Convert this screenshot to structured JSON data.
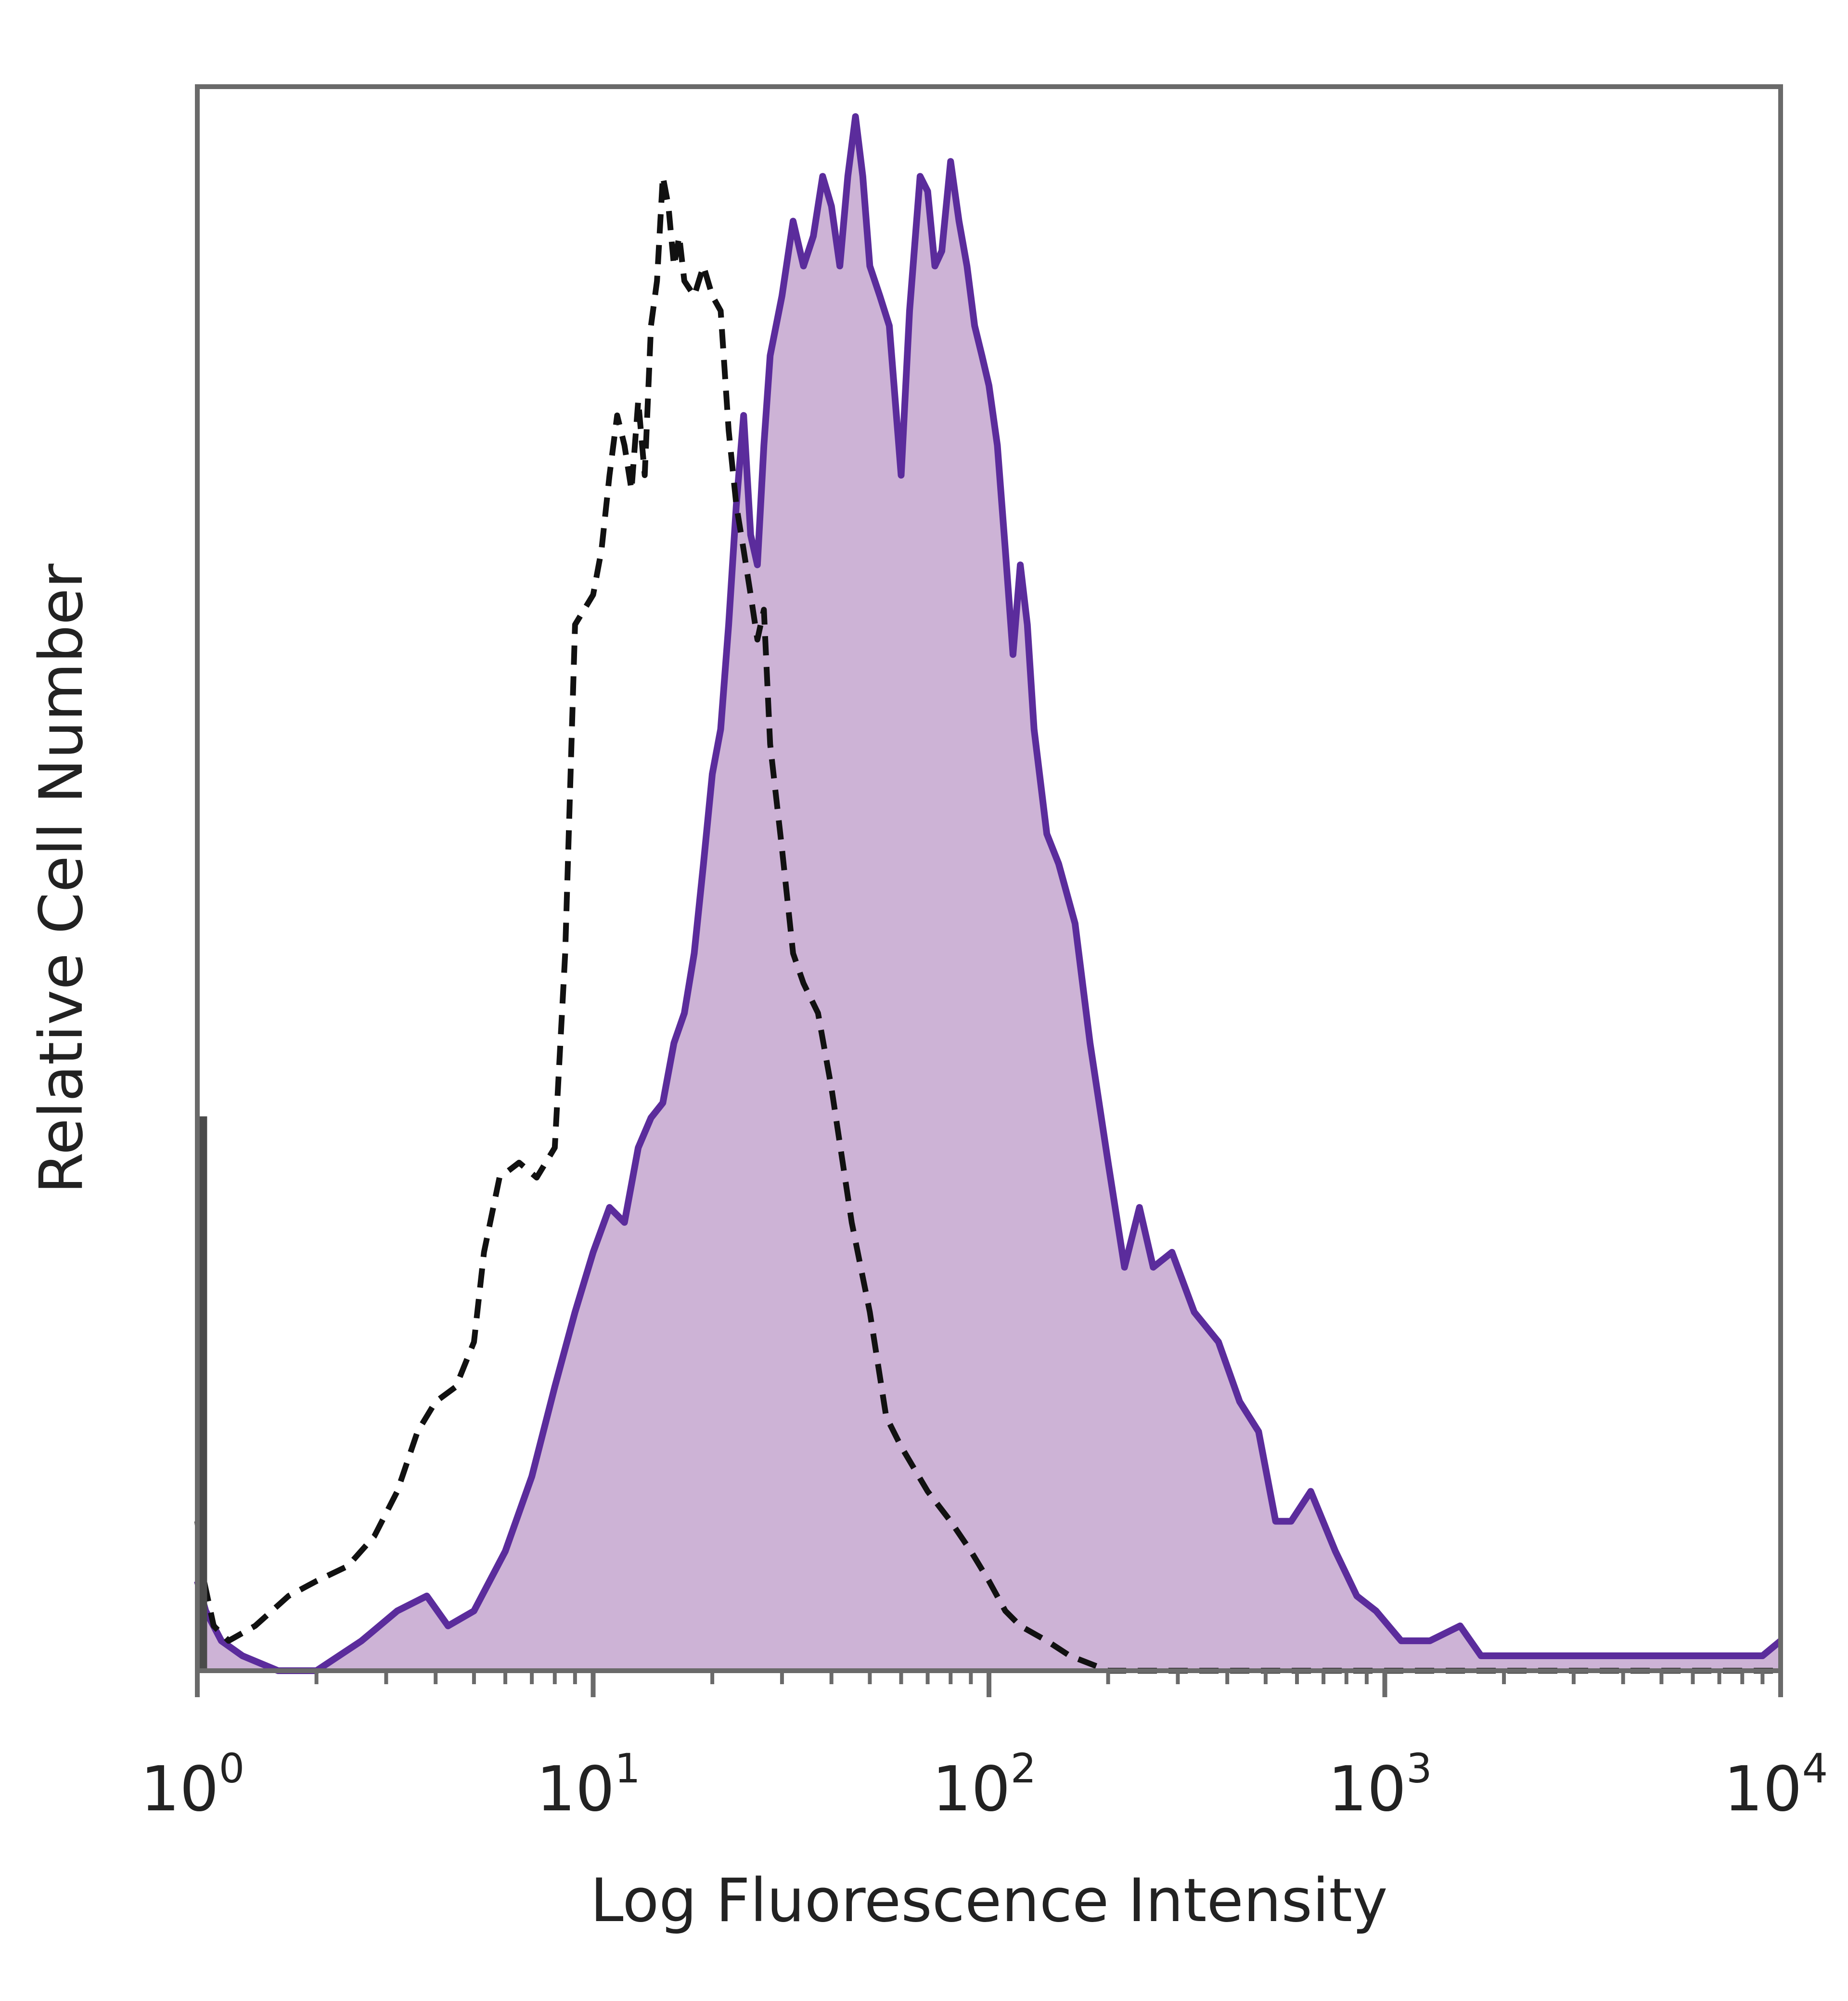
{
  "chart_data": {
    "type": "area",
    "title": "",
    "xlabel": "Log Fluorescence Intensity",
    "ylabel": "Relative Cell Number",
    "x_scale": "log",
    "xlim": [
      1,
      10000
    ],
    "ylim": [
      0,
      1.06
    ],
    "grid": false,
    "legend": "none",
    "x_ticks": [
      {
        "base": "10",
        "exp": "0"
      },
      {
        "base": "10",
        "exp": "1"
      },
      {
        "base": "10",
        "exp": "2"
      },
      {
        "base": "10",
        "exp": "3"
      },
      {
        "base": "10",
        "exp": "4"
      }
    ],
    "series": [
      {
        "style": "filled-solid",
        "stroke_color": "#5b2c9c",
        "fill_color": "#cdb3d6",
        "x": [
          1,
          1.05,
          1.15,
          1.3,
          1.6,
          2,
          2.6,
          3.2,
          3.8,
          4.3,
          5,
          6,
          7,
          8,
          9,
          10,
          11,
          12,
          13,
          14,
          15,
          16,
          17,
          18,
          19,
          20,
          21,
          22,
          23,
          24,
          25,
          26,
          27,
          28,
          30,
          32,
          34,
          36,
          38,
          40,
          42,
          44,
          46,
          48,
          50,
          53,
          56,
          60,
          63,
          67,
          70,
          73,
          76,
          80,
          84,
          88,
          92,
          96,
          100,
          105,
          110,
          115,
          120,
          125,
          130,
          140,
          150,
          165,
          180,
          200,
          220,
          240,
          260,
          290,
          330,
          380,
          430,
          480,
          530,
          580,
          650,
          750,
          850,
          950,
          1100,
          1300,
          1550,
          1750,
          2000,
          2500,
          3000,
          4000,
          5000,
          6000,
          7000,
          8000,
          9000,
          10000
        ],
        "y": [
          0.06,
          0.04,
          0.02,
          0.01,
          0.0,
          0.0,
          0.02,
          0.04,
          0.05,
          0.03,
          0.04,
          0.08,
          0.13,
          0.19,
          0.24,
          0.28,
          0.31,
          0.3,
          0.35,
          0.37,
          0.38,
          0.42,
          0.44,
          0.48,
          0.54,
          0.6,
          0.63,
          0.7,
          0.78,
          0.84,
          0.76,
          0.74,
          0.82,
          0.88,
          0.92,
          0.97,
          0.94,
          0.96,
          1.0,
          0.98,
          0.94,
          1.0,
          1.04,
          1.0,
          0.94,
          0.92,
          0.9,
          0.8,
          0.91,
          1.0,
          0.99,
          0.94,
          0.95,
          1.01,
          0.97,
          0.94,
          0.9,
          0.88,
          0.86,
          0.82,
          0.75,
          0.68,
          0.74,
          0.7,
          0.63,
          0.56,
          0.54,
          0.5,
          0.42,
          0.34,
          0.27,
          0.31,
          0.27,
          0.28,
          0.24,
          0.22,
          0.18,
          0.16,
          0.1,
          0.1,
          0.12,
          0.08,
          0.05,
          0.04,
          0.02,
          0.02,
          0.03,
          0.01,
          0.01,
          0.01,
          0.01,
          0.01,
          0.01,
          0.01,
          0.01,
          0.01,
          0.01,
          0.02
        ]
      },
      {
        "style": "dashed",
        "stroke_color": "#111111",
        "x": [
          1,
          1.04,
          1.1,
          1.2,
          1.4,
          1.7,
          2,
          2.4,
          2.8,
          3.2,
          3.6,
          4,
          4.5,
          5,
          5.3,
          5.8,
          6.5,
          7.2,
          8,
          8.5,
          9,
          10,
          10.5,
          11,
          11.5,
          12,
          12.5,
          13,
          13.5,
          14,
          14.5,
          15,
          15.5,
          16,
          16.5,
          17,
          18,
          19,
          20,
          21,
          22,
          23,
          24,
          25,
          26,
          27,
          28,
          30,
          32,
          34,
          37,
          40,
          45,
          50,
          55,
          60,
          70,
          80,
          90,
          100,
          110,
          120,
          140,
          160,
          200,
          300,
          500,
          1000,
          3000,
          10000
        ],
        "y": [
          0.1,
          0.06,
          0.03,
          0.02,
          0.03,
          0.05,
          0.06,
          0.07,
          0.09,
          0.12,
          0.16,
          0.18,
          0.19,
          0.22,
          0.28,
          0.33,
          0.34,
          0.33,
          0.35,
          0.48,
          0.7,
          0.72,
          0.75,
          0.8,
          0.84,
          0.82,
          0.79,
          0.85,
          0.8,
          0.9,
          0.93,
          1.0,
          0.98,
          0.94,
          0.96,
          0.93,
          0.92,
          0.94,
          0.92,
          0.91,
          0.83,
          0.78,
          0.75,
          0.72,
          0.69,
          0.71,
          0.62,
          0.55,
          0.48,
          0.46,
          0.44,
          0.39,
          0.3,
          0.24,
          0.17,
          0.15,
          0.12,
          0.1,
          0.08,
          0.06,
          0.04,
          0.03,
          0.02,
          0.01,
          0.0,
          0.0,
          0.0,
          0.0,
          0.0,
          0.0
        ]
      },
      {
        "style": "solid-spike",
        "stroke_color": "#4a4a4a",
        "x": [
          1,
          1.0,
          1.05,
          1.05
        ],
        "y": [
          0.0,
          0.37,
          0.37,
          0.0
        ]
      }
    ]
  }
}
